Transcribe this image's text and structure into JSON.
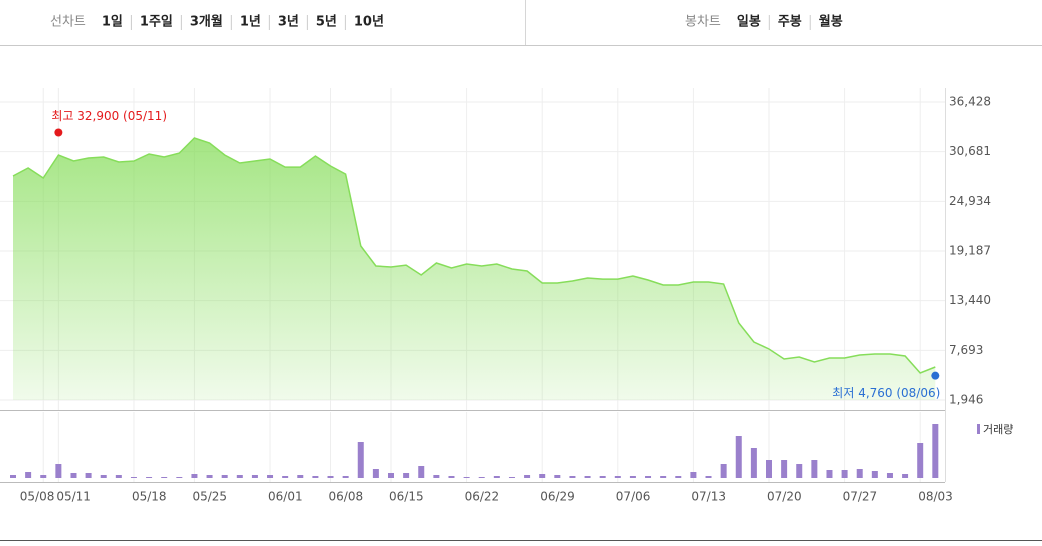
{
  "tabs": {
    "line": {
      "label": "선차트",
      "options": [
        "1일",
        "1주일",
        "3개월",
        "1년",
        "3년",
        "5년",
        "10년"
      ],
      "selected": 2
    },
    "candle": {
      "label": "봉차트",
      "options": [
        "일봉",
        "주봉",
        "월봉"
      ]
    }
  },
  "chart_data": [
    {
      "type": "area",
      "color": "#86dd5a",
      "values": [
        27863,
        28790,
        27630,
        30290,
        29600,
        29950,
        30060,
        29480,
        29600,
        30410,
        30060,
        30520,
        32260,
        31680,
        30290,
        29370,
        29600,
        29830,
        28900,
        28900,
        30180,
        29020,
        28090,
        19760,
        17450,
        17330,
        17560,
        16410,
        17800,
        17220,
        17680,
        17450,
        17680,
        17100,
        16870,
        15480,
        15480,
        15710,
        16060,
        15940,
        15940,
        16290,
        15830,
        15250,
        15250,
        15600,
        15600,
        15370,
        10850,
        8660,
        7850,
        6690,
        6920,
        6340,
        6810,
        6810,
        7150,
        7270,
        7270,
        7040,
        5070,
        5760
      ],
      "ylim": [
        1946,
        36428
      ],
      "yticks": [
        {
          "value": 36428,
          "label": "36,428"
        },
        {
          "value": 30681,
          "label": "30,681"
        },
        {
          "value": 24934,
          "label": "24,934"
        },
        {
          "value": 19187,
          "label": "19,187"
        },
        {
          "value": 13440,
          "label": "13,440"
        },
        {
          "value": 7693,
          "label": "7,693"
        },
        {
          "value": 1946,
          "label": "1,946"
        }
      ],
      "grid": true,
      "annotations": [
        {
          "label": "최고 32,900 (05/11)",
          "value": 32900,
          "index": 3,
          "color": "#e41a1c"
        },
        {
          "label": "최저 4,760 (08/06)",
          "value": 4760,
          "index": 61,
          "color": "#2a6fd3"
        }
      ]
    },
    {
      "type": "bar",
      "name": "거래량",
      "color": "#9a80cc",
      "categories": [
        null,
        null,
        "05/08",
        "05/11",
        null,
        null,
        null,
        null,
        "05/18",
        null,
        null,
        null,
        "05/25",
        null,
        null,
        null,
        null,
        "06/01",
        null,
        null,
        null,
        "06/08",
        null,
        null,
        null,
        "06/15",
        null,
        null,
        null,
        null,
        "06/22",
        null,
        null,
        null,
        null,
        "06/29",
        null,
        null,
        null,
        null,
        "07/06",
        null,
        null,
        null,
        null,
        "07/13",
        null,
        null,
        null,
        null,
        "07/20",
        null,
        null,
        null,
        null,
        "07/27",
        null,
        null,
        null,
        null,
        "08/03",
        null
      ],
      "values": [
        3,
        6,
        3,
        14,
        5,
        5,
        3,
        3,
        1,
        1,
        1,
        1,
        4,
        3,
        3,
        3,
        3,
        3,
        2,
        3,
        2,
        2,
        2,
        36,
        9,
        5,
        5,
        12,
        3,
        2,
        1,
        1,
        2,
        1,
        3,
        4,
        3,
        2,
        2,
        2,
        2,
        2,
        2,
        2,
        2,
        6,
        2,
        14,
        42,
        30,
        18,
        18,
        14,
        18,
        8,
        8,
        9,
        7,
        5,
        4,
        35,
        54
      ]
    }
  ]
}
